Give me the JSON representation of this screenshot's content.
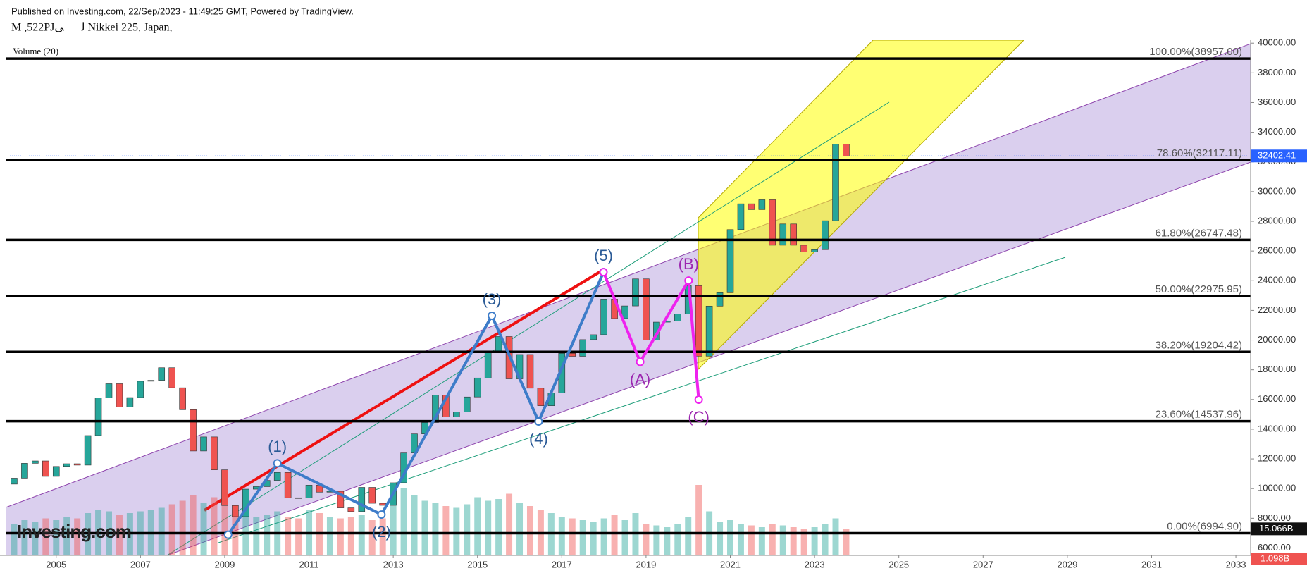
{
  "chart_data": {
    "type": "candlestick",
    "header": "Published on Investing.com, 22/Sep/2023 - 11:49:25 GMT, Powered by TradingView.",
    "symbol": "M ,522PJلڶۤی Nikkei 225, Japan,",
    "volume_title": "Volume (20)",
    "logo": "Investing.com",
    "first_open": 10300,
    "x": [
      2004.0,
      2004.25,
      2004.5,
      2004.75,
      2005.0,
      2005.25,
      2005.5,
      2005.75,
      2006.0,
      2006.25,
      2006.5,
      2006.75,
      2007.0,
      2007.25,
      2007.5,
      2007.75,
      2008.0,
      2008.25,
      2008.5,
      2008.75,
      2009.0,
      2009.25,
      2009.5,
      2009.75,
      2010.0,
      2010.25,
      2010.5,
      2010.75,
      2011.0,
      2011.25,
      2011.5,
      2011.75,
      2012.0,
      2012.25,
      2012.5,
      2012.75,
      2013.0,
      2013.25,
      2013.5,
      2013.75,
      2014.0,
      2014.25,
      2014.5,
      2014.75,
      2015.0,
      2015.25,
      2015.5,
      2015.75,
      2016.0,
      2016.25,
      2016.5,
      2016.75,
      2017.0,
      2017.25,
      2017.5,
      2017.75,
      2018.0,
      2018.25,
      2018.5,
      2018.75,
      2019.0,
      2019.25,
      2019.5,
      2019.75,
      2020.0,
      2020.25,
      2020.5,
      2020.75,
      2021.0,
      2021.25,
      2021.5,
      2021.75,
      2022.0,
      2022.25,
      2022.5,
      2022.75,
      2023.0,
      2023.25,
      2023.5,
      2023.75
    ],
    "close": [
      10700,
      11700,
      11860,
      10820,
      11490,
      11670,
      11580,
      13570,
      16110,
      17060,
      15500,
      16130,
      17230,
      17290,
      18140,
      16790,
      15310,
      12530,
      13480,
      11260,
      8860,
      8110,
      9960,
      10130,
      10550,
      11090,
      9380,
      9370,
      10230,
      9760,
      9820,
      8700,
      8450,
      10080,
      9010,
      8870,
      10390,
      12400,
      13680,
      14450,
      16290,
      14830,
      15160,
      16170,
      17450,
      19210,
      20240,
      17390,
      19030,
      16760,
      15580,
      16450,
      19110,
      18910,
      20030,
      20360,
      22760,
      21450,
      22300,
      24120,
      20010,
      21210,
      21280,
      21750,
      23660,
      18920,
      22290,
      23190,
      27440,
      29180,
      28790,
      29450,
      26390,
      27820,
      26390,
      25940,
      26090,
      28040,
      33190,
      32400
    ],
    "volume": [
      18,
      20,
      19,
      21,
      20,
      22,
      21,
      24,
      26,
      25,
      23,
      24,
      25,
      26,
      27,
      29,
      31,
      34,
      30,
      33,
      35,
      28,
      24,
      22,
      23,
      25,
      22,
      21,
      26,
      24,
      22,
      21,
      22,
      23,
      20,
      21,
      30,
      38,
      34,
      31,
      30,
      28,
      27,
      29,
      33,
      31,
      32,
      35,
      30,
      28,
      26,
      24,
      22,
      21,
      20,
      19,
      21,
      23,
      20,
      24,
      18,
      17,
      16,
      18,
      22,
      40,
      25,
      19,
      20,
      18,
      17,
      16,
      18,
      17,
      16,
      15,
      16,
      18,
      21,
      15.066
    ],
    "volume_ylim": [
      0,
      40
    ],
    "last_volume_label": "15.066B",
    "low_volume_label": "1.098B",
    "xlim": [
      2003.8,
      2033.35
    ],
    "xticks": [
      2005,
      2007,
      2009,
      2011,
      2013,
      2015,
      2017,
      2019,
      2021,
      2023,
      2025,
      2027,
      2029,
      2031,
      2033
    ],
    "ylim": [
      5500,
      40200
    ],
    "yticks": [
      {
        "value": 6000,
        "label": "6000.00"
      },
      {
        "value": 8000,
        "label": "8000.00"
      },
      {
        "value": 10000,
        "label": "10000.00"
      },
      {
        "value": 12000,
        "label": "12000.00"
      },
      {
        "value": 14000,
        "label": "14000.00"
      },
      {
        "value": 16000,
        "label": "16000.00"
      },
      {
        "value": 18000,
        "label": "18000.00"
      },
      {
        "value": 20000,
        "label": "20000.00"
      },
      {
        "value": 22000,
        "label": "22000.00"
      },
      {
        "value": 24000,
        "label": "24000.00"
      },
      {
        "value": 26000,
        "label": "26000.00"
      },
      {
        "value": 28000,
        "label": "28000.00"
      },
      {
        "value": 30000,
        "label": "30000.00"
      },
      {
        "value": 32000,
        "label": "32000.00"
      },
      {
        "value": 34000,
        "label": "34000.00"
      },
      {
        "value": 36000,
        "label": "36000.00"
      },
      {
        "value": 38000,
        "label": "38000.00"
      },
      {
        "value": 40000,
        "label": "40000.00"
      }
    ],
    "fib_levels": [
      {
        "value": 38957,
        "label": "100.00%(38957.00)"
      },
      {
        "value": 32117.11,
        "label": "78.60%(32117.11)"
      },
      {
        "value": 26747.48,
        "label": "61.80%(26747.48)"
      },
      {
        "value": 22975.95,
        "label": "50.00%(22975.95)"
      },
      {
        "value": 19204.42,
        "label": "38.20%(19204.42)"
      },
      {
        "value": 14537.96,
        "label": "23.60%(14537.96)"
      },
      {
        "value": 6994.9,
        "label": "0.00%(6994.90)"
      }
    ],
    "last_price": {
      "value": 32402.41,
      "label": "32402.41"
    },
    "up_color": "#26a69a",
    "down_color": "#ef5350",
    "waves": [
      {
        "color": "#3d7cc9",
        "label_color": "#2a5a96",
        "points": [
          {
            "x": 2009.08,
            "y": 6893
          },
          {
            "x": 2010.25,
            "y": 11700,
            "label": "(1)",
            "pos": "above"
          },
          {
            "x": 2012.72,
            "y": 8250,
            "label": "(2)",
            "pos": "below"
          },
          {
            "x": 2015.34,
            "y": 21640,
            "label": "(3)",
            "pos": "above"
          },
          {
            "x": 2016.45,
            "y": 14520,
            "label": "(4)",
            "pos": "below"
          },
          {
            "x": 2017.99,
            "y": 24576,
            "label": "(5)",
            "pos": "above"
          }
        ]
      },
      {
        "color": "#ee22ee",
        "label_color": "#9c27b0",
        "points": [
          {
            "x": 2017.99,
            "y": 24576
          },
          {
            "x": 2018.86,
            "y": 18530,
            "label": "(A)",
            "pos": "below"
          },
          {
            "x": 2020.01,
            "y": 24010,
            "label": "(B)",
            "pos": "above"
          },
          {
            "x": 2020.25,
            "y": 15990,
            "label": "(C)",
            "pos": "below"
          }
        ]
      }
    ]
  }
}
